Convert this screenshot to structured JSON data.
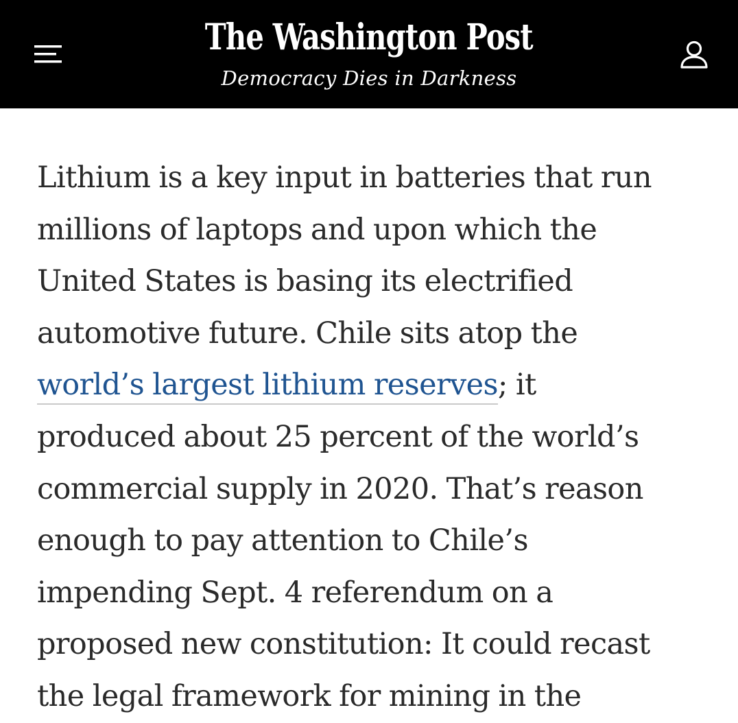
{
  "header": {
    "logo": "The Washington Post",
    "tagline": "Democracy Dies in Darkness",
    "menu_icon": "hamburger-menu-icon",
    "account_icon": "user-account-icon",
    "background": "#000000"
  },
  "article": {
    "lines": [
      "Lithium is a key input in batteries that run",
      "millions of laptops and upon which the",
      "United States is basing its electrified",
      "automotive future. Chile sits atop the",
      "; it",
      "produced about 25 percent of the world’s",
      "commercial supply in 2020. That’s reason",
      "enough to pay attention to Chile’s",
      "impending Sept. 4 referendum on a",
      "proposed new constitution: It could recast",
      "the legal framework for mining in the"
    ],
    "link_text": "world’s largest lithium reserves",
    "link_color": "#1f5491",
    "text_color": "#2a2a2a"
  }
}
